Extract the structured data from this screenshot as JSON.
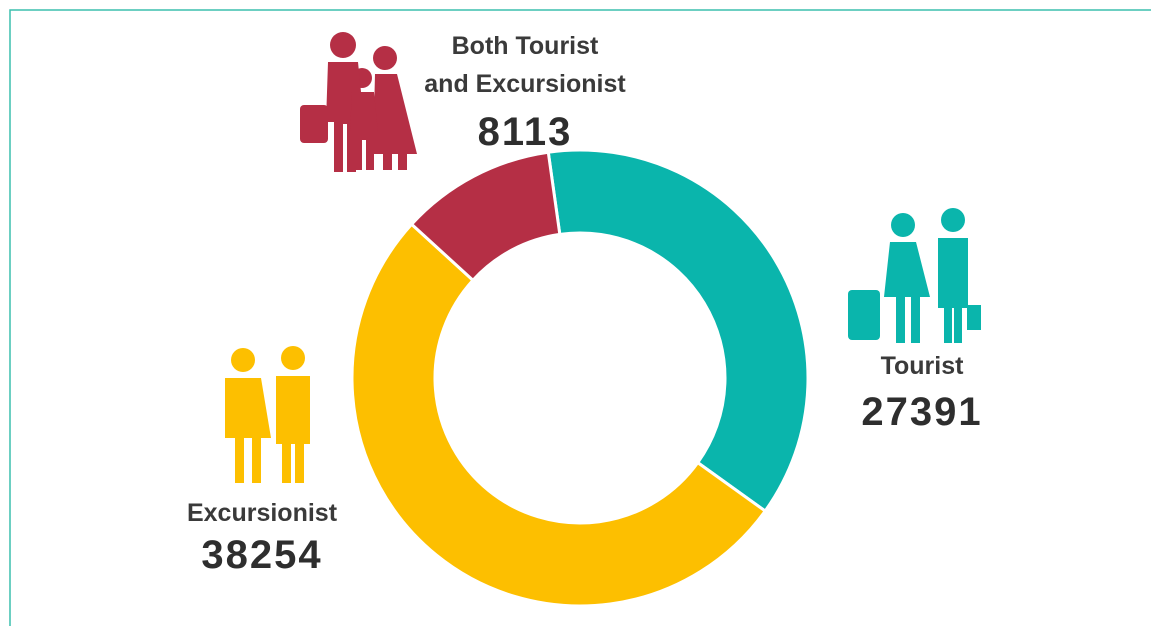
{
  "chart_data": {
    "type": "donut",
    "categories": [
      "Tourist",
      "Excursionist",
      "Both Tourist and Excursionist"
    ],
    "values": [
      27391,
      38254,
      8113
    ],
    "colors": [
      "#0ab5ac",
      "#fdbf00",
      "#b52f45"
    ]
  }
}
